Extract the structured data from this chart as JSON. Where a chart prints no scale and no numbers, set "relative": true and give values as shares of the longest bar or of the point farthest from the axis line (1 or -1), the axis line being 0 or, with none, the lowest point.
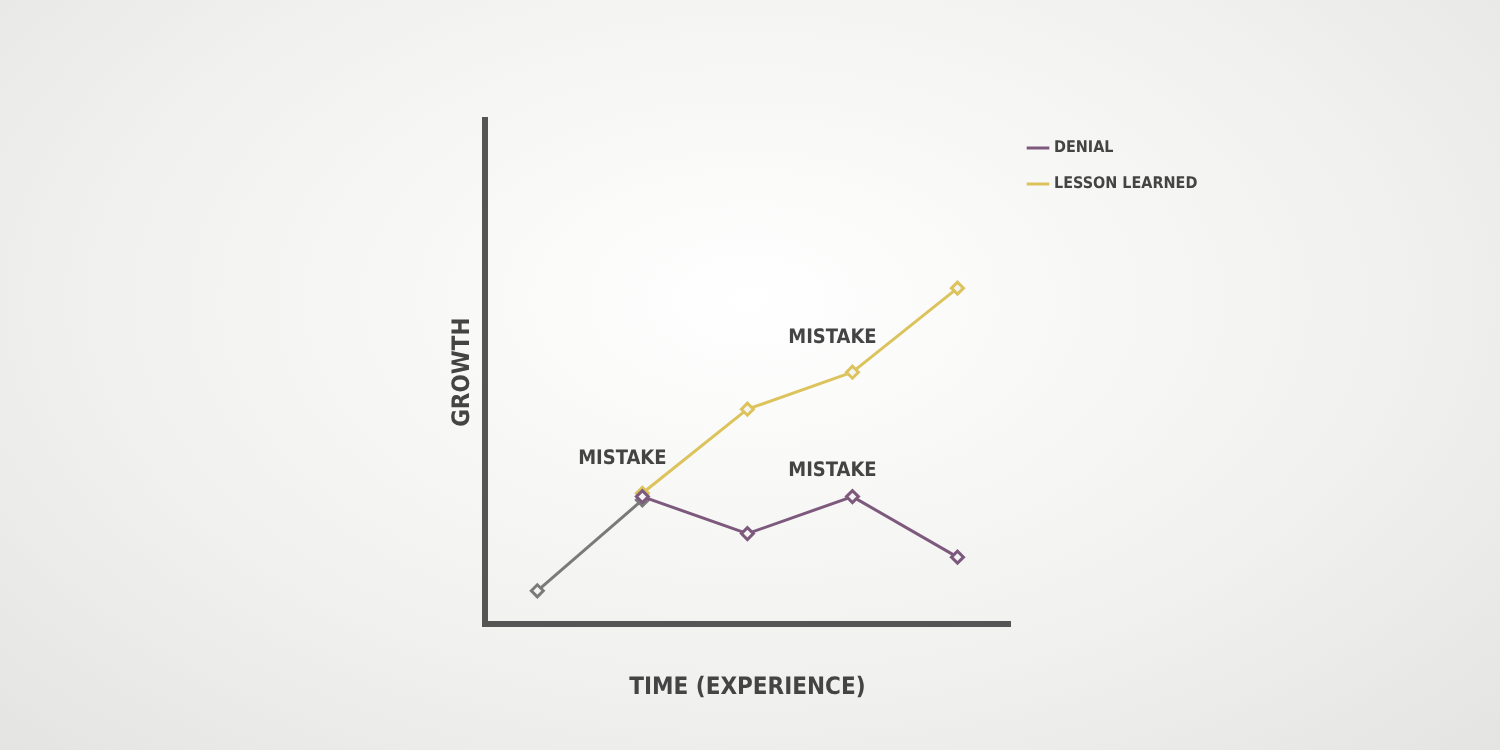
{
  "chart_data": {
    "type": "line",
    "relative": true,
    "xlabel": "TIME (EXPERIENCE)",
    "ylabel": "GROWTH",
    "categories": [
      null,
      null,
      null,
      null,
      null
    ],
    "series": [
      {
        "color": "#7a7a7a",
        "values": [
          0.1,
          0.37,
          null,
          null,
          null
        ]
      },
      {
        "name": "LESSON LEARNED",
        "color": "#dcc35c",
        "values": [
          null,
          0.39,
          0.64,
          0.75,
          1
        ]
      },
      {
        "name": "DENIAL",
        "color": "#7d5a7d",
        "values": [
          null,
          0.38,
          0.27,
          0.38,
          0.2
        ]
      }
    ],
    "annotations": [
      "MISTAKE",
      "MISTAKE",
      "MISTAKE"
    ],
    "marker": "diamond",
    "line_style": "solid",
    "legend": "top right",
    "grid": false
  }
}
